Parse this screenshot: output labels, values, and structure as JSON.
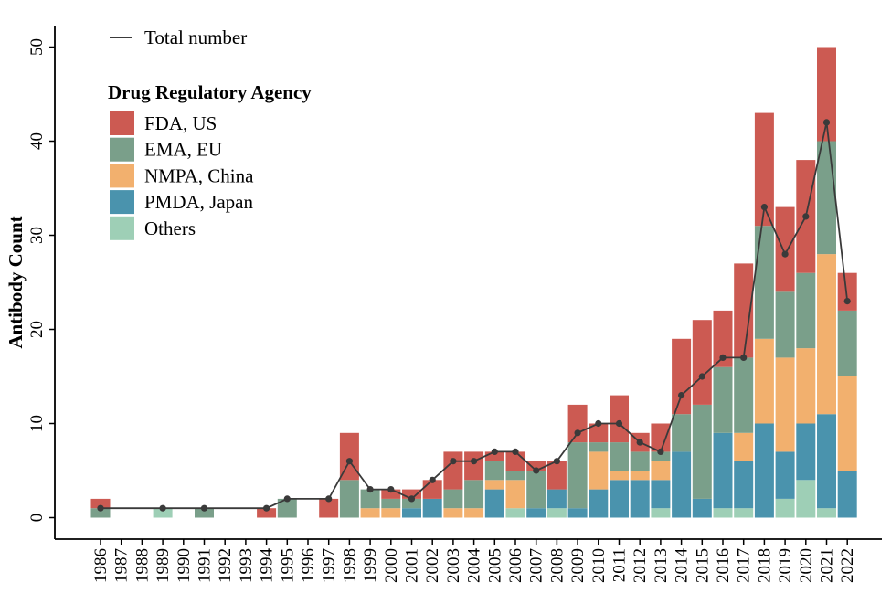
{
  "chart_data": {
    "type": "bar",
    "stacked": true,
    "ylabel": "Antibody Count",
    "xlabel": "",
    "ylim": [
      0,
      52
    ],
    "yticks": [
      0,
      10,
      20,
      30,
      40,
      50
    ],
    "grid": false,
    "legend_title": "Drug Regulatory Agency",
    "line_legend_label": "Total number",
    "line_color": "#3a3a3a",
    "categories": [
      "1986",
      "1987",
      "1988",
      "1989",
      "1990",
      "1991",
      "1992",
      "1993",
      "1994",
      "1995",
      "1996",
      "1997",
      "1998",
      "1999",
      "2000",
      "2001",
      "2002",
      "2003",
      "2004",
      "2005",
      "2006",
      "2007",
      "2008",
      "2009",
      "2010",
      "2011",
      "2012",
      "2013",
      "2014",
      "2015",
      "2016",
      "2017",
      "2018",
      "2019",
      "2020",
      "2021",
      "2022"
    ],
    "series": [
      {
        "name": "Others",
        "color": "#9ecfb6",
        "values": [
          0,
          0,
          0,
          1,
          0,
          0,
          0,
          0,
          0,
          0,
          0,
          0,
          0,
          0,
          0,
          0,
          0,
          0,
          0,
          0,
          1,
          0,
          1,
          0,
          0,
          0,
          0,
          1,
          0,
          0,
          1,
          1,
          0,
          2,
          4,
          1,
          0
        ]
      },
      {
        "name": "PMDA, Japan",
        "color": "#4a93ad",
        "values": [
          0,
          0,
          0,
          0,
          0,
          0,
          0,
          0,
          0,
          0,
          0,
          0,
          0,
          0,
          0,
          1,
          2,
          0,
          0,
          3,
          0,
          1,
          2,
          1,
          3,
          4,
          4,
          3,
          7,
          2,
          8,
          5,
          10,
          5,
          6,
          10,
          5
        ]
      },
      {
        "name": "NMPA, China",
        "color": "#f2b06e",
        "values": [
          0,
          0,
          0,
          0,
          0,
          0,
          0,
          0,
          0,
          0,
          0,
          0,
          0,
          1,
          1,
          0,
          0,
          1,
          1,
          1,
          3,
          0,
          0,
          0,
          4,
          1,
          1,
          2,
          0,
          0,
          0,
          3,
          9,
          10,
          8,
          17,
          10
        ]
      },
      {
        "name": "EMA, EU",
        "color": "#7a9f8a",
        "values": [
          1,
          0,
          0,
          0,
          0,
          1,
          0,
          0,
          0,
          2,
          0,
          0,
          4,
          2,
          1,
          1,
          0,
          2,
          3,
          2,
          1,
          4,
          0,
          7,
          1,
          3,
          2,
          1,
          4,
          10,
          7,
          8,
          12,
          7,
          8,
          12,
          7
        ]
      },
      {
        "name": "FDA, US",
        "color": "#cc5a52",
        "values": [
          1,
          0,
          0,
          0,
          0,
          0,
          0,
          0,
          1,
          0,
          0,
          2,
          5,
          0,
          1,
          1,
          2,
          4,
          3,
          1,
          2,
          1,
          3,
          4,
          2,
          5,
          2,
          3,
          8,
          9,
          6,
          10,
          12,
          9,
          12,
          10,
          4
        ]
      }
    ],
    "legend_order": [
      "FDA, US",
      "EMA, EU",
      "NMPA, China",
      "PMDA, Japan",
      "Others"
    ],
    "total": [
      1,
      null,
      null,
      1,
      null,
      1,
      null,
      null,
      1,
      2,
      null,
      2,
      6,
      3,
      3,
      2,
      4,
      6,
      6,
      7,
      7,
      5,
      6,
      9,
      10,
      10,
      8,
      7,
      13,
      15,
      17,
      17,
      33,
      28,
      32,
      42,
      23
    ]
  }
}
